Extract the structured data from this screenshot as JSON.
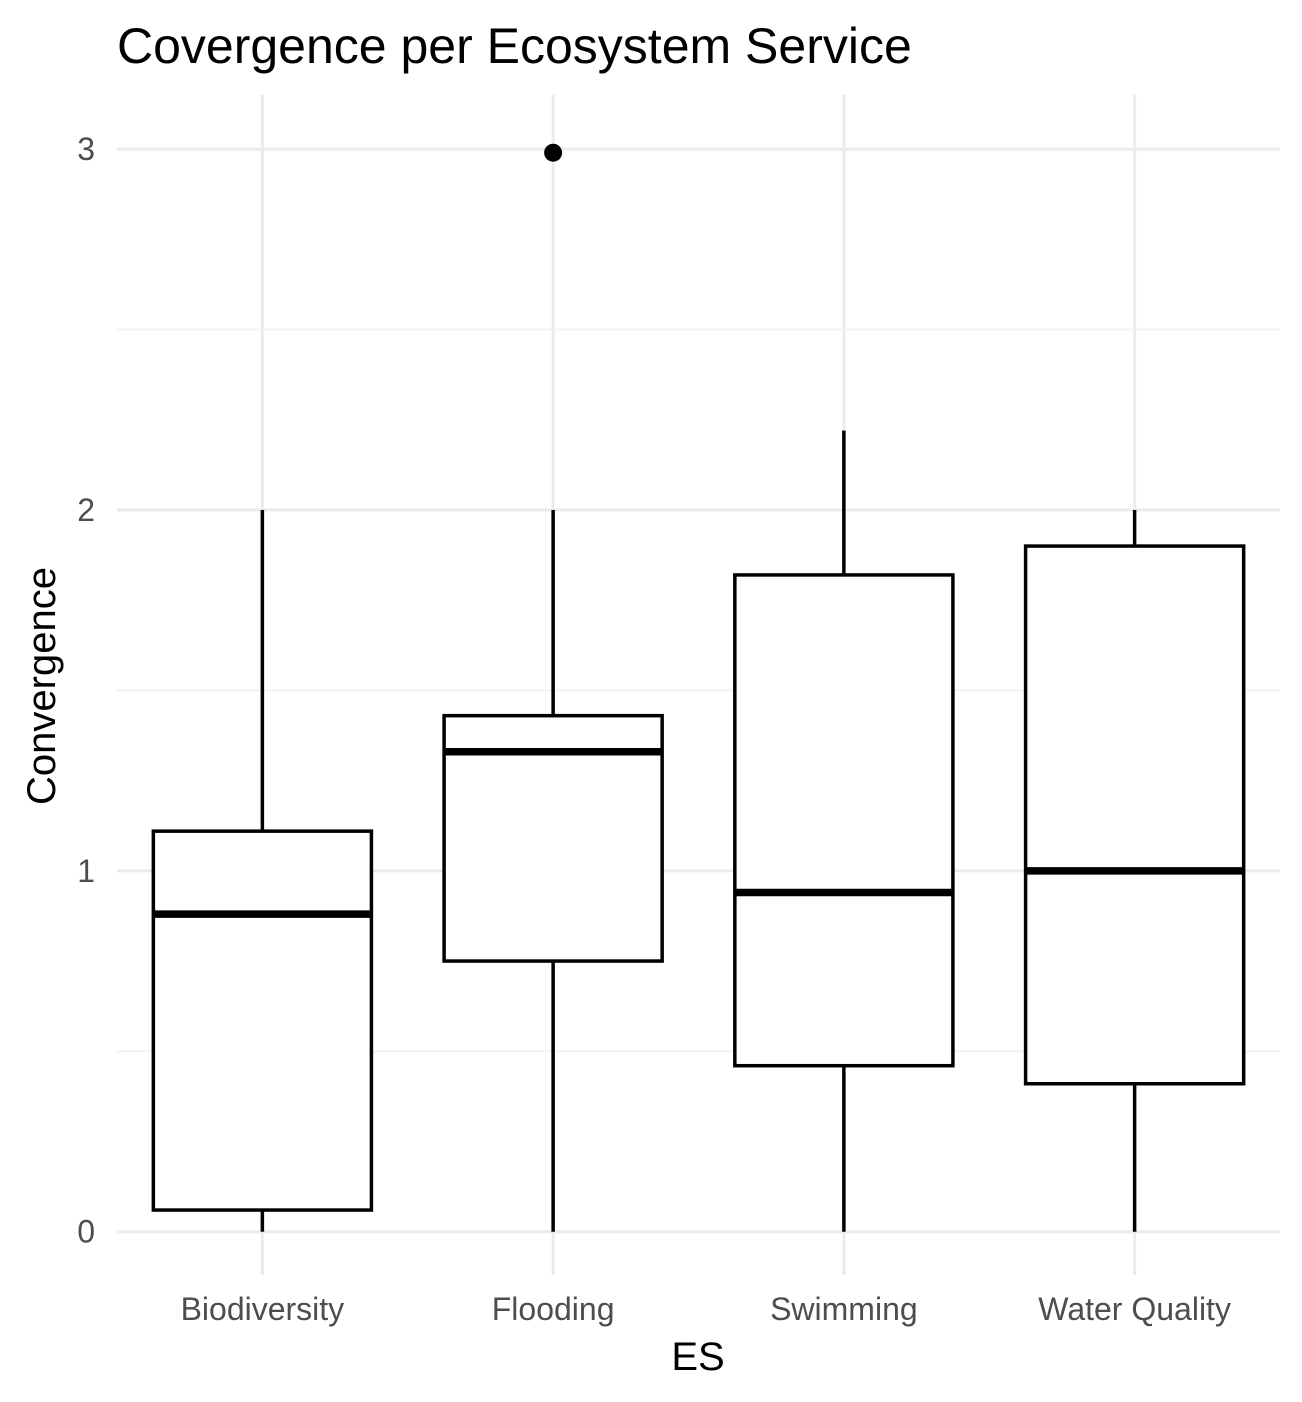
{
  "chart_data": {
    "type": "boxplot",
    "title": "Covergence per Ecosystem Service",
    "xlabel": "ES",
    "ylabel": "Convergence",
    "ylim": [
      -0.12,
      3.15
    ],
    "yticks": [
      0,
      1,
      2,
      3
    ],
    "y_minor_ticks": [
      0.5,
      1.5,
      2.5
    ],
    "grid": true,
    "categories": [
      "Biodiversity",
      "Flooding",
      "Swimming",
      "Water Quality"
    ],
    "boxes": [
      {
        "category": "Biodiversity",
        "whisker_low": 0.0,
        "q1": 0.06,
        "median": 0.88,
        "q3": 1.11,
        "whisker_high": 2.0,
        "outliers": []
      },
      {
        "category": "Flooding",
        "whisker_low": 0.0,
        "q1": 0.75,
        "median": 1.33,
        "q3": 1.43,
        "whisker_high": 2.0,
        "outliers": [
          2.99
        ]
      },
      {
        "category": "Swimming",
        "whisker_low": 0.0,
        "q1": 0.46,
        "median": 0.94,
        "q3": 1.82,
        "whisker_high": 2.22,
        "outliers": []
      },
      {
        "category": "Water Quality",
        "whisker_low": 0.0,
        "q1": 0.41,
        "median": 1.0,
        "q3": 1.9,
        "whisker_high": 2.0,
        "outliers": []
      }
    ],
    "colors": {
      "box_stroke": "#000000",
      "box_fill": "#ffffff",
      "grid_major": "#ebebeb",
      "grid_minor": "#f2f2f2",
      "tick_label": "#4d4d4d"
    }
  }
}
